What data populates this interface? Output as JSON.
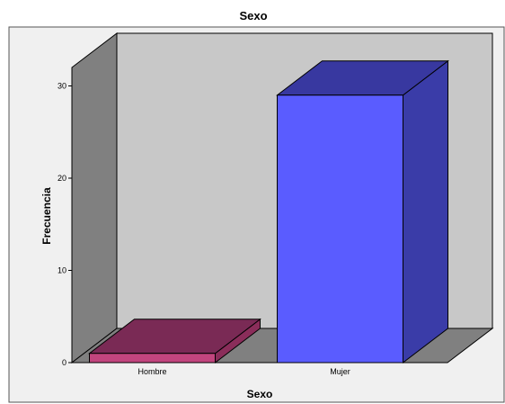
{
  "chart_data": {
    "type": "bar",
    "title": "Sexo",
    "xlabel": "Sexo",
    "ylabel": "Frecuencia",
    "categories": [
      "Hombre",
      "Mujer"
    ],
    "values": [
      1,
      29
    ],
    "ylim": [
      0,
      32
    ],
    "yticks": [
      0,
      10,
      20,
      30
    ],
    "bar_colors": [
      "#c2457e",
      "#5a5cff"
    ],
    "bar_side_colors": [
      "#8a2d5a",
      "#3a3ca8"
    ],
    "bar_top_colors": [
      "#7a2a55",
      "#3838a0"
    ],
    "wall_color": "#c8c8c8",
    "side_wall_color": "#808080",
    "floor_color": "#808080",
    "plot_background": "#f0f0f0",
    "style": "3d"
  }
}
